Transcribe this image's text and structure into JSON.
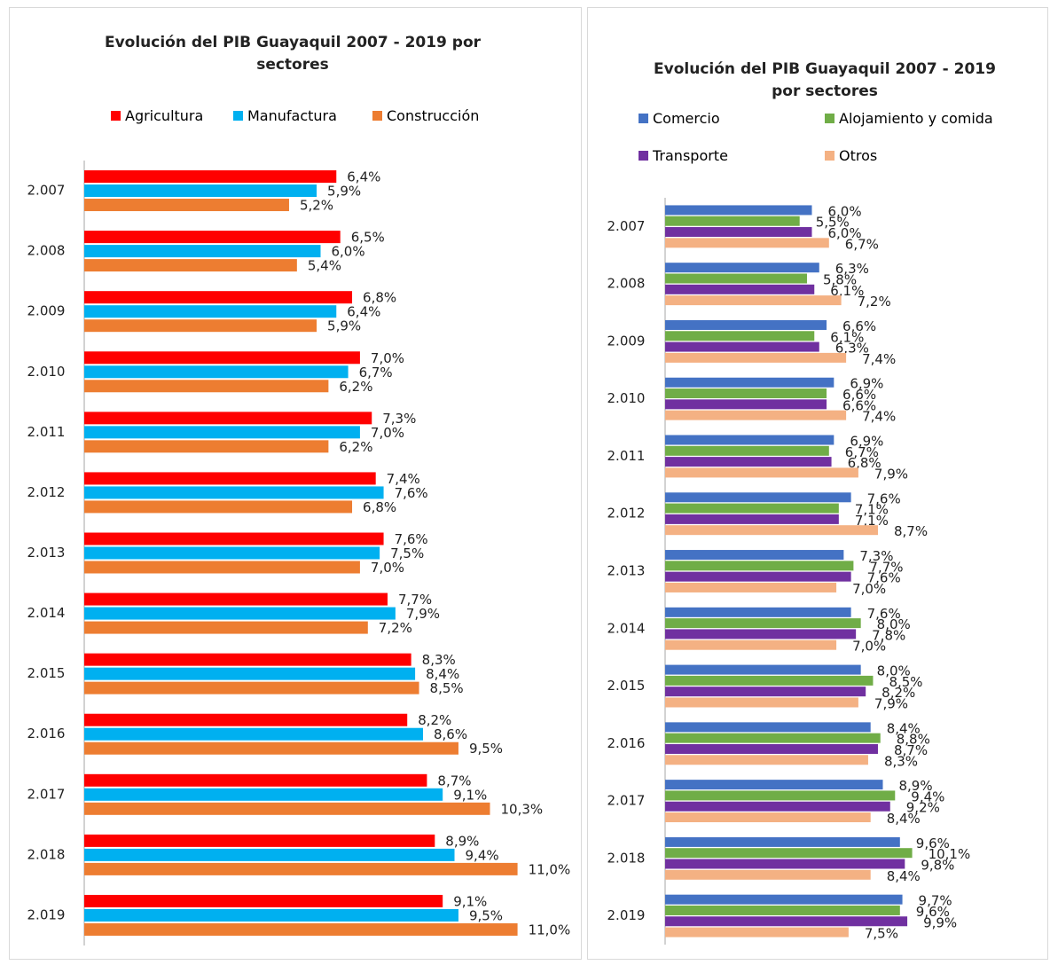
{
  "chart_data": [
    {
      "type": "bar",
      "orientation": "horizontal",
      "title": "Evolución del PIB Guayaquil 2007 - 2019 por sectores",
      "categories": [
        "2.007",
        "2.008",
        "2.009",
        "2.010",
        "2.011",
        "2.012",
        "2.013",
        "2.014",
        "2.015",
        "2.016",
        "2.017",
        "2.018",
        "2.019"
      ],
      "xlim": [
        0,
        12
      ],
      "series": [
        {
          "name": "Agricultura",
          "color": "#ff0000",
          "values": [
            6.4,
            6.5,
            6.8,
            7.0,
            7.3,
            7.4,
            7.6,
            7.7,
            8.3,
            8.2,
            8.7,
            8.9,
            9.1
          ],
          "value_labels": [
            "6,4%",
            "6,5%",
            "6,8%",
            "7,0%",
            "7,3%",
            "7,4%",
            "7,6%",
            "7,7%",
            "8,3%",
            "8,2%",
            "8,7%",
            "8,9%",
            "9,1%"
          ]
        },
        {
          "name": "Manufactura",
          "color": "#00b0f0",
          "values": [
            5.9,
            6.0,
            6.4,
            6.7,
            7.0,
            7.6,
            7.5,
            7.9,
            8.4,
            8.6,
            9.1,
            9.4,
            9.5
          ],
          "value_labels": [
            "5,9%",
            "6,0%",
            "6,4%",
            "6,7%",
            "7,0%",
            "7,6%",
            "7,5%",
            "7,9%",
            "8,4%",
            "8,6%",
            "9,1%",
            "9,4%",
            "9,5%"
          ]
        },
        {
          "name": "Construcción",
          "color": "#ed7d31",
          "values": [
            5.2,
            5.4,
            5.9,
            6.2,
            6.2,
            6.8,
            7.0,
            7.2,
            8.5,
            9.5,
            10.3,
            11.0,
            11.0
          ],
          "value_labels": [
            "5,2%",
            "5,4%",
            "5,9%",
            "6,2%",
            "6,2%",
            "6,8%",
            "7,0%",
            "7,2%",
            "8,5%",
            "9,5%",
            "10,3%",
            "11,0%",
            "11,0%"
          ]
        }
      ]
    },
    {
      "type": "bar",
      "orientation": "horizontal",
      "title": "Evolución del PIB Guayaquil 2007 - 2019 por sectores",
      "categories": [
        "2.007",
        "2.008",
        "2.009",
        "2.010",
        "2.011",
        "2.012",
        "2.013",
        "2.014",
        "2.015",
        "2.016",
        "2.017",
        "2.018",
        "2.019"
      ],
      "xlim": [
        0,
        12
      ],
      "series": [
        {
          "name": "Comercio",
          "color": "#4472c4",
          "values": [
            6.0,
            6.3,
            6.6,
            6.9,
            6.9,
            7.6,
            7.3,
            7.6,
            8.0,
            8.4,
            8.9,
            9.6,
            9.7
          ],
          "value_labels": [
            "6,0%",
            "6,3%",
            "6,6%",
            "6,9%",
            "6,9%",
            "7,6%",
            "7,3%",
            "7,6%",
            "8,0%",
            "8,4%",
            "8,9%",
            "9,6%",
            "9,7%"
          ]
        },
        {
          "name": "Alojamiento y comida",
          "color": "#70ad47",
          "values": [
            5.5,
            5.8,
            6.1,
            6.6,
            6.7,
            7.1,
            7.7,
            8.0,
            8.5,
            8.8,
            9.4,
            10.1,
            9.6
          ],
          "value_labels": [
            "5,5%",
            "5,8%",
            "6,1%",
            "6,6%",
            "6,7%",
            "7,1%",
            "7,7%",
            "8,0%",
            "8,5%",
            "8,8%",
            "9,4%",
            "10,1%",
            "9,6%"
          ]
        },
        {
          "name": "Transporte",
          "color": "#7030a0",
          "values": [
            6.0,
            6.1,
            6.3,
            6.6,
            6.8,
            7.1,
            7.6,
            7.8,
            8.2,
            8.7,
            9.2,
            9.8,
            9.9
          ],
          "value_labels": [
            "6,0%",
            "6,1%",
            "6,3%",
            "6,6%",
            "6,8%",
            "7,1%",
            "7,6%",
            "7,8%",
            "8,2%",
            "8,7%",
            "9,2%",
            "9,8%",
            "9,9%"
          ]
        },
        {
          "name": "Otros",
          "color": "#f4b183",
          "values": [
            6.7,
            7.2,
            7.4,
            7.4,
            7.9,
            8.7,
            7.0,
            7.0,
            7.9,
            8.3,
            8.4,
            8.4,
            7.5
          ],
          "value_labels": [
            "6,7%",
            "7,2%",
            "7,4%",
            "7,4%",
            "7,9%",
            "8,7%",
            "7,0%",
            "7,0%",
            "7,9%",
            "8,3%",
            "8,4%",
            "8,4%",
            "7,5%"
          ]
        }
      ]
    }
  ]
}
